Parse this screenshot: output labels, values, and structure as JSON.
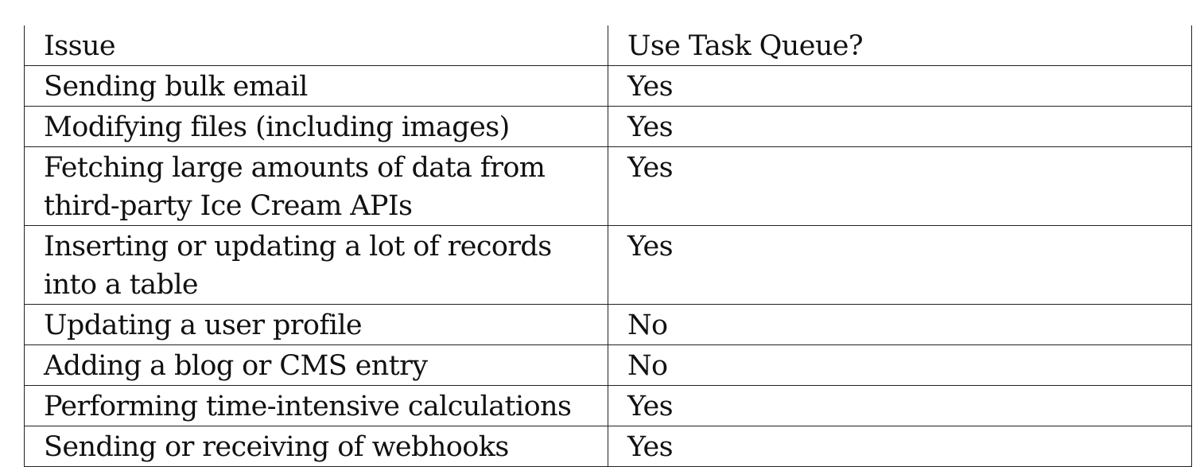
{
  "table": {
    "headers": [
      "Issue",
      "Use Task Queue?"
    ],
    "rows": [
      {
        "issue": "Sending bulk email",
        "use_task_queue": "Yes"
      },
      {
        "issue": "Modifying files (including images)",
        "use_task_queue": "Yes"
      },
      {
        "issue": "Fetching large amounts of data from third-party Ice Cream APIs",
        "use_task_queue": "Yes"
      },
      {
        "issue": "Inserting or updating a lot of records into a table",
        "use_task_queue": "Yes"
      },
      {
        "issue": "Updating a user profile",
        "use_task_queue": "No"
      },
      {
        "issue": "Adding a blog or CMS entry",
        "use_task_queue": "No"
      },
      {
        "issue": "Performing time-intensive calculations",
        "use_task_queue": "Yes"
      },
      {
        "issue": "Sending or receiving of webhooks",
        "use_task_queue": "Yes"
      }
    ]
  }
}
